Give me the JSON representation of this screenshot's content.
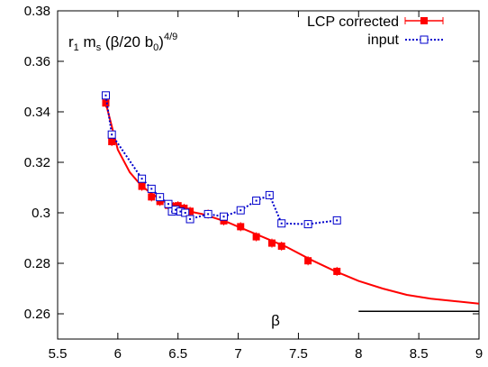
{
  "chart_data": {
    "type": "line",
    "title": "",
    "xlabel": "β",
    "ylabel_parts": [
      "r",
      "1",
      " m",
      "s",
      " (β/20 b",
      "0",
      ")",
      "4/9"
    ],
    "xlim": [
      5.5,
      9
    ],
    "ylim": [
      0.25,
      0.38
    ],
    "x_ticks": [
      5.5,
      6,
      6.5,
      7,
      7.5,
      8,
      8.5,
      9
    ],
    "x_tick_labels": [
      "5.5",
      "6",
      "6.5",
      "7",
      "7.5",
      "8",
      "8.5",
      "9"
    ],
    "y_ticks": [
      0.26,
      0.28,
      0.3,
      0.32,
      0.34,
      0.36,
      0.38
    ],
    "y_tick_labels": [
      "0.26",
      "0.28",
      "0.3",
      "0.32",
      "0.34",
      "0.36",
      "0.38"
    ],
    "grid": false,
    "legend_position": "top-right",
    "series": [
      {
        "name": "LCP corrected",
        "color": "#ff0000",
        "marker": "filled-square",
        "line_style": "solid",
        "x": [
          5.9,
          5.95,
          6.2,
          6.28,
          6.35,
          6.42,
          6.46,
          6.5,
          6.55,
          6.6,
          6.75,
          6.88,
          7.02,
          7.15,
          7.28,
          7.36,
          7.58,
          7.82
        ],
        "y": [
          0.3435,
          0.3282,
          0.3105,
          0.3063,
          0.3045,
          0.303,
          0.3025,
          0.3028,
          0.3018,
          0.3006,
          0.2995,
          0.2968,
          0.2945,
          0.2905,
          0.288,
          0.2868,
          0.281,
          0.2768
        ]
      },
      {
        "name": "input",
        "color": "#0000cc",
        "marker": "open-square",
        "line_style": "dotted",
        "x": [
          5.9,
          5.95,
          6.2,
          6.28,
          6.35,
          6.42,
          6.45,
          6.48,
          6.52,
          6.56,
          6.6,
          6.75,
          6.88,
          7.02,
          7.15,
          7.26,
          7.36,
          7.58,
          7.82
        ],
        "y": [
          0.3465,
          0.331,
          0.3135,
          0.3095,
          0.3062,
          0.3035,
          0.3005,
          0.3012,
          0.3005,
          0.3,
          0.2975,
          0.2995,
          0.2985,
          0.301,
          0.3048,
          0.307,
          0.2958,
          0.2955,
          0.297
        ]
      },
      {
        "name": "",
        "color": "#000000",
        "line_style": "solid",
        "x": [
          8.0,
          9.0
        ],
        "y": [
          0.261,
          0.261
        ]
      }
    ],
    "fit_curve": {
      "color": "#ff0000",
      "x": [
        5.9,
        6.0,
        6.1,
        6.2,
        6.3,
        6.4,
        6.5,
        6.6,
        6.7,
        6.8,
        6.9,
        7.0,
        7.2,
        7.4,
        7.6,
        7.8,
        8.0,
        8.2,
        8.4,
        8.6,
        8.8,
        9.0
      ],
      "y": [
        0.3435,
        0.325,
        0.316,
        0.3105,
        0.307,
        0.304,
        0.302,
        0.3005,
        0.2995,
        0.298,
        0.2965,
        0.2945,
        0.2905,
        0.2865,
        0.2815,
        0.277,
        0.273,
        0.27,
        0.2675,
        0.266,
        0.265,
        0.264
      ]
    }
  }
}
